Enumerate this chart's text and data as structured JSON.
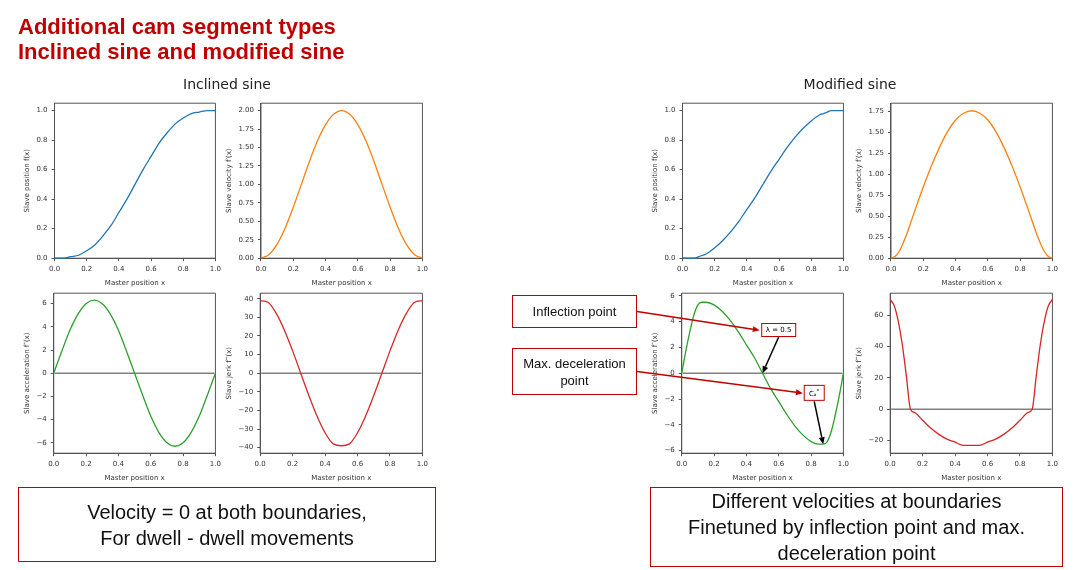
{
  "chart_data": [
    {
      "type": "other",
      "title": "Additional cam segment types",
      "subtitle": "Inclined sine and modified sine"
    },
    {
      "type": "other",
      "title": "Inclined sine",
      "annotations": [
        "Velocity = 0 at both boundaries,\nFor dwell - dwell movements"
      ]
    },
    {
      "type": "line",
      "xlabel": "Master position x",
      "ylabel": "Slave position f(x)",
      "color": "#1f77b4",
      "grid": false,
      "legend": false,
      "x": [
        0,
        0.05,
        0.1,
        0.15,
        0.2,
        0.25,
        0.3,
        0.35,
        0.4,
        0.45,
        0.5,
        0.55,
        0.6,
        0.65,
        0.7,
        0.75,
        0.8,
        0.85,
        0.9,
        0.95,
        1
      ],
      "values": [
        0,
        0,
        0.01,
        0.02,
        0.05,
        0.09,
        0.15,
        0.22,
        0.31,
        0.4,
        0.5,
        0.6,
        0.69,
        0.78,
        0.85,
        0.91,
        0.95,
        0.98,
        0.99,
        1,
        1
      ],
      "xlim": [
        0,
        1
      ],
      "xticks": [
        {
          "value": 0,
          "label": "0.0"
        },
        {
          "value": 0.2,
          "label": "0.2"
        },
        {
          "value": 0.4,
          "label": "0.4"
        },
        {
          "value": 0.6,
          "label": "0.6"
        },
        {
          "value": 0.8,
          "label": "0.8"
        },
        {
          "value": 1,
          "label": "1.0"
        }
      ],
      "ylim": [
        0,
        1.05
      ],
      "yticks": [
        {
          "value": 0,
          "label": "0.0"
        },
        {
          "value": 0.2,
          "label": "0.2"
        },
        {
          "value": 0.4,
          "label": "0.4"
        },
        {
          "value": 0.6,
          "label": "0.6"
        },
        {
          "value": 0.8,
          "label": "0.8"
        },
        {
          "value": 1,
          "label": "1.0"
        }
      ]
    },
    {
      "type": "line",
      "xlabel": "Master position x",
      "ylabel": "Slave velocity f′(x)",
      "color": "#ff7f0e",
      "grid": false,
      "legend": false,
      "x": [
        0,
        0.05,
        0.1,
        0.15,
        0.2,
        0.25,
        0.3,
        0.35,
        0.4,
        0.45,
        0.5,
        0.55,
        0.6,
        0.65,
        0.7,
        0.75,
        0.8,
        0.85,
        0.9,
        0.95,
        1
      ],
      "values": [
        0,
        0.05,
        0.19,
        0.41,
        0.69,
        1,
        1.31,
        1.59,
        1.81,
        1.95,
        2,
        1.95,
        1.81,
        1.59,
        1.31,
        1,
        0.69,
        0.41,
        0.19,
        0.05,
        0
      ],
      "xlim": [
        0,
        1
      ],
      "xticks": [
        {
          "value": 0,
          "label": "0.0"
        },
        {
          "value": 0.2,
          "label": "0.2"
        },
        {
          "value": 0.4,
          "label": "0.4"
        },
        {
          "value": 0.6,
          "label": "0.6"
        },
        {
          "value": 0.8,
          "label": "0.8"
        },
        {
          "value": 1,
          "label": "1.0"
        }
      ],
      "ylim": [
        0,
        2.1
      ],
      "yticks": [
        {
          "value": 0,
          "label": "0.00"
        },
        {
          "value": 0.25,
          "label": "0.25"
        },
        {
          "value": 0.5,
          "label": "0.50"
        },
        {
          "value": 0.75,
          "label": "0.75"
        },
        {
          "value": 1,
          "label": "1.00"
        },
        {
          "value": 1.25,
          "label": "1.25"
        },
        {
          "value": 1.5,
          "label": "1.50"
        },
        {
          "value": 1.75,
          "label": "1.75"
        },
        {
          "value": 2,
          "label": "2.00"
        }
      ]
    },
    {
      "type": "line",
      "xlabel": "Master position x",
      "ylabel": "Slave acceleration f″(x)",
      "color": "#2ca02c",
      "grid": false,
      "legend": false,
      "x": [
        0,
        0.05,
        0.1,
        0.15,
        0.2,
        0.25,
        0.3,
        0.35,
        0.4,
        0.45,
        0.5,
        0.55,
        0.6,
        0.65,
        0.7,
        0.75,
        0.8,
        0.85,
        0.9,
        0.95,
        1
      ],
      "values": [
        0,
        1.9,
        3.7,
        5.1,
        6,
        6.3,
        6,
        5.1,
        3.7,
        1.9,
        0,
        -1.9,
        -3.7,
        -5.1,
        -6,
        -6.3,
        -6,
        -5.1,
        -3.7,
        -1.9,
        0
      ],
      "xlim": [
        0,
        1
      ],
      "xticks": [
        {
          "value": 0,
          "label": "0.0"
        },
        {
          "value": 0.2,
          "label": "0.2"
        },
        {
          "value": 0.4,
          "label": "0.4"
        },
        {
          "value": 0.6,
          "label": "0.6"
        },
        {
          "value": 0.8,
          "label": "0.8"
        },
        {
          "value": 1,
          "label": "1.0"
        }
      ],
      "ylim": [
        -6.9,
        6.9
      ],
      "yticks": [
        {
          "value": -6,
          "label": "−6"
        },
        {
          "value": -4,
          "label": "−4"
        },
        {
          "value": -2,
          "label": "−2"
        },
        0,
        2,
        4,
        6
      ],
      "ref_lines": [
        {
          "axis": "y",
          "value": 0,
          "color": "#808080"
        }
      ]
    },
    {
      "type": "line",
      "xlabel": "Master position x",
      "ylabel": "Slave jerk f‴(x)",
      "color": "#d62728",
      "grid": false,
      "legend": false,
      "x": [
        0,
        0.05,
        0.1,
        0.15,
        0.2,
        0.25,
        0.3,
        0.35,
        0.4,
        0.45,
        0.5,
        0.55,
        0.6,
        0.65,
        0.7,
        0.75,
        0.8,
        0.85,
        0.9,
        0.95,
        1
      ],
      "values": [
        39,
        38,
        32,
        23,
        12,
        0,
        -12,
        -23,
        -32,
        -38,
        -39,
        -38,
        -32,
        -23,
        -12,
        0,
        12,
        23,
        32,
        38,
        39
      ],
      "xlim": [
        0,
        1
      ],
      "xticks": [
        {
          "value": 0,
          "label": "0.0"
        },
        {
          "value": 0.2,
          "label": "0.2"
        },
        {
          "value": 0.4,
          "label": "0.4"
        },
        {
          "value": 0.6,
          "label": "0.6"
        },
        {
          "value": 0.8,
          "label": "0.8"
        },
        {
          "value": 1,
          "label": "1.0"
        }
      ],
      "ylim": [
        -43,
        43
      ],
      "yticks": [
        {
          "value": -40,
          "label": "−40"
        },
        {
          "value": -30,
          "label": "−30"
        },
        {
          "value": -20,
          "label": "−20"
        },
        {
          "value": -10,
          "label": "−10"
        },
        0,
        10,
        20,
        30,
        40
      ],
      "ref_lines": [
        {
          "axis": "y",
          "value": 0,
          "color": "#808080"
        }
      ]
    },
    {
      "type": "other",
      "title": "Modified sine",
      "annotations": [
        "Different velocities at boundaries\nFinetuned by inflection point and max. deceleration point"
      ]
    },
    {
      "type": "line",
      "xlabel": "Master position x",
      "ylabel": "Slave position f(x)",
      "color": "#1f77b4",
      "grid": false,
      "legend": false,
      "x": [
        0,
        0.025,
        0.05,
        0.075,
        0.1,
        0.125,
        0.15,
        0.2,
        0.25,
        0.3,
        0.35,
        0.4,
        0.45,
        0.5,
        0.55,
        0.6,
        0.65,
        0.7,
        0.75,
        0.8,
        0.85,
        0.875,
        0.9,
        0.925,
        0.95,
        0.975,
        1
      ],
      "values": [
        0,
        0,
        0,
        0,
        0.01,
        0.02,
        0.03,
        0.07,
        0.12,
        0.18,
        0.25,
        0.33,
        0.41,
        0.5,
        0.59,
        0.67,
        0.75,
        0.82,
        0.88,
        0.93,
        0.97,
        0.98,
        0.99,
        1,
        1,
        1,
        1
      ],
      "xlim": [
        0,
        1
      ],
      "xticks": [
        {
          "value": 0,
          "label": "0.0"
        },
        {
          "value": 0.2,
          "label": "0.2"
        },
        {
          "value": 0.4,
          "label": "0.4"
        },
        {
          "value": 0.6,
          "label": "0.6"
        },
        {
          "value": 0.8,
          "label": "0.8"
        },
        {
          "value": 1,
          "label": "1.0"
        }
      ],
      "ylim": [
        0,
        1.05
      ],
      "yticks": [
        {
          "value": 0,
          "label": "0.0"
        },
        {
          "value": 0.2,
          "label": "0.2"
        },
        {
          "value": 0.4,
          "label": "0.4"
        },
        {
          "value": 0.6,
          "label": "0.6"
        },
        {
          "value": 0.8,
          "label": "0.8"
        },
        {
          "value": 1,
          "label": "1.0"
        }
      ]
    },
    {
      "type": "line",
      "xlabel": "Master position x",
      "ylabel": "Slave velocity f′(x)",
      "color": "#ff7f0e",
      "grid": false,
      "legend": false,
      "x": [
        0,
        0.025,
        0.05,
        0.075,
        0.1,
        0.125,
        0.15,
        0.2,
        0.25,
        0.3,
        0.35,
        0.4,
        0.45,
        0.5,
        0.55,
        0.6,
        0.65,
        0.7,
        0.75,
        0.8,
        0.85,
        0.875,
        0.9,
        0.925,
        0.95,
        0.975,
        1
      ],
      "values": [
        0,
        0.02,
        0.08,
        0.18,
        0.3,
        0.44,
        0.58,
        0.85,
        1.1,
        1.32,
        1.51,
        1.65,
        1.73,
        1.76,
        1.73,
        1.65,
        1.51,
        1.32,
        1.1,
        0.85,
        0.58,
        0.44,
        0.3,
        0.18,
        0.08,
        0.02,
        0
      ],
      "xlim": [
        0,
        1
      ],
      "xticks": [
        {
          "value": 0,
          "label": "0.0"
        },
        {
          "value": 0.2,
          "label": "0.2"
        },
        {
          "value": 0.4,
          "label": "0.4"
        },
        {
          "value": 0.6,
          "label": "0.6"
        },
        {
          "value": 0.8,
          "label": "0.8"
        },
        {
          "value": 1,
          "label": "1.0"
        }
      ],
      "ylim": [
        0,
        1.85
      ],
      "yticks": [
        {
          "value": 0,
          "label": "0.00"
        },
        {
          "value": 0.25,
          "label": "0.25"
        },
        {
          "value": 0.5,
          "label": "0.50"
        },
        {
          "value": 0.75,
          "label": "0.75"
        },
        {
          "value": 1,
          "label": "1.00"
        },
        {
          "value": 1.25,
          "label": "1.25"
        },
        {
          "value": 1.5,
          "label": "1.50"
        },
        {
          "value": 1.75,
          "label": "1.75"
        }
      ]
    },
    {
      "type": "line",
      "xlabel": "Master position x",
      "ylabel": "Slave acceleration f″(x)",
      "color": "#2ca02c",
      "grid": false,
      "legend": false,
      "x": [
        0,
        0.025,
        0.05,
        0.075,
        0.1,
        0.125,
        0.15,
        0.2,
        0.25,
        0.3,
        0.35,
        0.4,
        0.45,
        0.5,
        0.55,
        0.6,
        0.65,
        0.7,
        0.75,
        0.8,
        0.85,
        0.875,
        0.9,
        0.925,
        0.95,
        0.975,
        1
      ],
      "values": [
        0,
        1.7,
        3.2,
        4.5,
        5.3,
        5.5,
        5.5,
        5.3,
        4.8,
        4.1,
        3.2,
        2.2,
        1.2,
        0,
        -1.2,
        -2.2,
        -3.2,
        -4.1,
        -4.8,
        -5.3,
        -5.5,
        -5.5,
        -5.3,
        -4.5,
        -3.2,
        -1.7,
        0
      ],
      "xlim": [
        0,
        1
      ],
      "xticks": [
        {
          "value": 0,
          "label": "0.0"
        },
        {
          "value": 0.2,
          "label": "0.2"
        },
        {
          "value": 0.4,
          "label": "0.4"
        },
        {
          "value": 0.6,
          "label": "0.6"
        },
        {
          "value": 0.8,
          "label": "0.8"
        },
        {
          "value": 1,
          "label": "1.0"
        }
      ],
      "ylim": [
        -6.2,
        6.2
      ],
      "yticks": [
        {
          "value": -6,
          "label": "−6"
        },
        {
          "value": -4,
          "label": "−4"
        },
        {
          "value": -2,
          "label": "−2"
        },
        0,
        2,
        4,
        6
      ],
      "ref_lines": [
        {
          "axis": "y",
          "value": 0,
          "color": "#808080"
        }
      ],
      "annotations": [
        "Inflection point",
        "Max. deceleration point",
        {
          "text": "λ = 0.5",
          "x": 0.5,
          "y": 0
        },
        {
          "text": "Cₐ$^{*}$",
          "x": 0.875,
          "y": -5.5
        }
      ]
    },
    {
      "type": "line",
      "xlabel": "Master position x",
      "ylabel": "Slave jerk f‴(x)",
      "color": "#d62728",
      "grid": false,
      "legend": false,
      "x": [
        0,
        0.025,
        0.05,
        0.075,
        0.1,
        0.125,
        0.15,
        0.2,
        0.25,
        0.3,
        0.35,
        0.4,
        0.45,
        0.5,
        0.55,
        0.6,
        0.65,
        0.7,
        0.75,
        0.8,
        0.85,
        0.875,
        0.9,
        0.925,
        0.95,
        0.975,
        1
      ],
      "values": [
        70,
        66,
        56,
        41,
        21,
        0,
        -2,
        -7,
        -12,
        -16,
        -19,
        -21,
        -23,
        -23,
        -23,
        -21,
        -19,
        -16,
        -12,
        -7,
        -2,
        0,
        21,
        41,
        56,
        66,
        70
      ],
      "xlim": [
        0,
        1
      ],
      "xticks": [
        {
          "value": 0,
          "label": "0.0"
        },
        {
          "value": 0.2,
          "label": "0.2"
        },
        {
          "value": 0.4,
          "label": "0.4"
        },
        {
          "value": 0.6,
          "label": "0.6"
        },
        {
          "value": 0.8,
          "label": "0.8"
        },
        {
          "value": 1,
          "label": "1.0"
        }
      ],
      "ylim": [
        -28,
        74
      ],
      "yticks": [
        {
          "value": -20,
          "label": "−20"
        },
        0,
        20,
        40,
        60
      ],
      "ref_lines": [
        {
          "axis": "y",
          "value": 0,
          "color": "#808080"
        }
      ]
    }
  ]
}
